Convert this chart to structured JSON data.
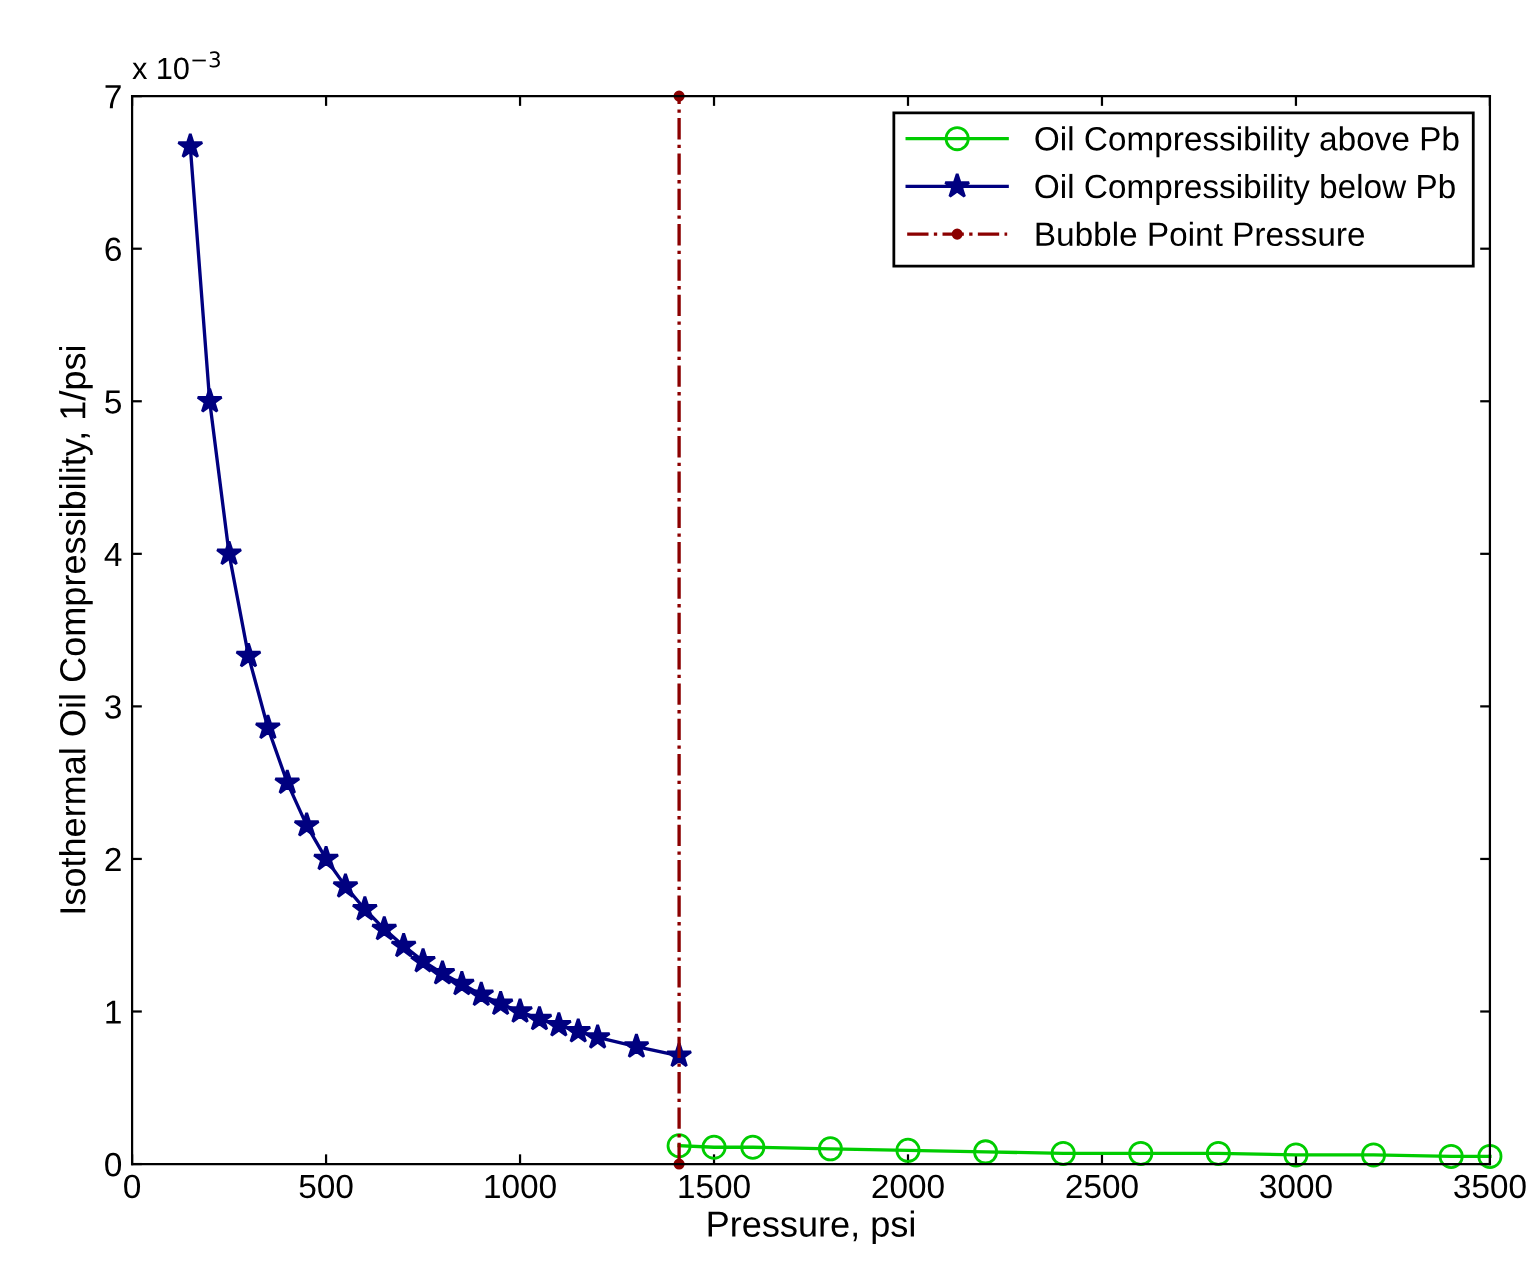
{
  "chart_data": {
    "type": "line",
    "xlabel": "Pressure, psi",
    "ylabel": "Isothermal Oil Compressibility, 1/psi",
    "annotations": [
      "x 10$^{−3}$"
    ],
    "series": [
      {
        "name": "Oil Compressibility above Pb",
        "color": "#00cc00",
        "marker": "circle",
        "x": [
          1410,
          1500,
          1600,
          1800,
          2000,
          2200,
          2400,
          2600,
          2800,
          3000,
          3200,
          3400,
          3500
        ],
        "values": [
          0.12,
          0.11,
          0.11,
          0.1,
          0.09,
          0.08,
          0.07,
          0.07,
          0.07,
          0.06,
          0.06,
          0.05,
          0.05
        ]
      },
      {
        "name": "Oil Compressibility below Pb",
        "color": "#000080",
        "marker": "star",
        "x": [
          150,
          200,
          250,
          300,
          350,
          400,
          450,
          500,
          550,
          600,
          650,
          700,
          750,
          800,
          850,
          900,
          950,
          1000,
          1050,
          1100,
          1150,
          1200,
          1300,
          1410
        ],
        "values": [
          6.67,
          5.0,
          4.0,
          3.33,
          2.86,
          2.5,
          2.22,
          2.0,
          1.82,
          1.67,
          1.54,
          1.43,
          1.33,
          1.25,
          1.18,
          1.11,
          1.05,
          1.0,
          0.95,
          0.91,
          0.87,
          0.83,
          0.77,
          0.71
        ]
      },
      {
        "name": "Bubble Point Pressure",
        "color": "#8b0000",
        "marker": "point",
        "line_style": "dashdot",
        "x": [
          1410,
          1410
        ],
        "values": [
          0,
          7
        ]
      }
    ],
    "xlim": [
      0,
      3500
    ],
    "xticks": [
      0,
      500,
      1000,
      1500,
      2000,
      2500,
      3000,
      3500
    ],
    "ylim": [
      0,
      7
    ],
    "yticks": [
      0,
      1,
      2,
      3,
      4,
      5,
      6,
      7
    ],
    "grid": false,
    "legend": "top right"
  }
}
